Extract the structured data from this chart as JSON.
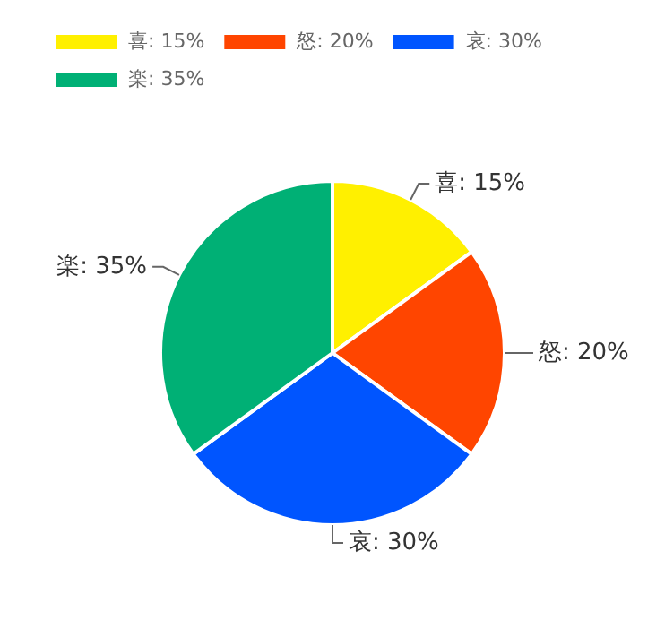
{
  "chart_data": {
    "type": "pie",
    "categories": [
      "喜: 15%",
      "怒: 20%",
      "哀: 30%",
      "楽: 35%"
    ],
    "values": [
      15,
      20,
      30,
      35
    ],
    "colors": [
      "#fff000",
      "#ff4500",
      "#0055ff",
      "#00b075"
    ],
    "legend": "top left"
  }
}
